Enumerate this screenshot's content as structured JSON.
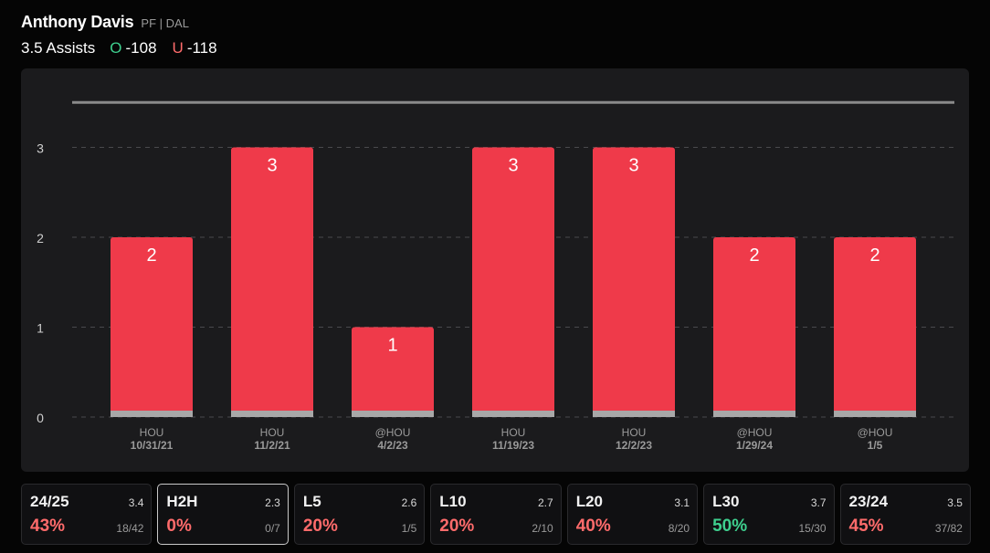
{
  "player": {
    "name": "Anthony Davis",
    "meta": "PF | DAL"
  },
  "line": {
    "label": "3.5 Assists",
    "over_letter": "O",
    "over_odds": "-108",
    "under_letter": "U",
    "under_odds": "-118"
  },
  "colors": {
    "bar": "#ef3a4a",
    "bar_base": "#a8a8a8",
    "over": "#3ecf8e",
    "under": "#ff6b6b",
    "line": "#8a8a8a"
  },
  "chart_data": {
    "type": "bar",
    "categories": [
      {
        "opponent": "HOU",
        "date": "10/31/21"
      },
      {
        "opponent": "HOU",
        "date": "11/2/21"
      },
      {
        "opponent": "@HOU",
        "date": "4/2/23"
      },
      {
        "opponent": "HOU",
        "date": "11/19/23"
      },
      {
        "opponent": "HOU",
        "date": "12/2/23"
      },
      {
        "opponent": "@HOU",
        "date": "1/29/24"
      },
      {
        "opponent": "@HOU",
        "date": "1/5"
      }
    ],
    "values": [
      2,
      3,
      1,
      3,
      3,
      2,
      2
    ],
    "yticks": [
      0,
      1,
      2,
      3
    ],
    "ylim": [
      0,
      3.5
    ],
    "threshold": 3.5,
    "title": "",
    "xlabel": "",
    "ylabel": ""
  },
  "stats": [
    {
      "label": "24/25",
      "avg": "3.4",
      "pct": "43%",
      "ratio": "18/42",
      "status": "under",
      "active": false
    },
    {
      "label": "H2H",
      "avg": "2.3",
      "pct": "0%",
      "ratio": "0/7",
      "status": "under",
      "active": true
    },
    {
      "label": "L5",
      "avg": "2.6",
      "pct": "20%",
      "ratio": "1/5",
      "status": "under",
      "active": false
    },
    {
      "label": "L10",
      "avg": "2.7",
      "pct": "20%",
      "ratio": "2/10",
      "status": "under",
      "active": false
    },
    {
      "label": "L20",
      "avg": "3.1",
      "pct": "40%",
      "ratio": "8/20",
      "status": "under",
      "active": false
    },
    {
      "label": "L30",
      "avg": "3.7",
      "pct": "50%",
      "ratio": "15/30",
      "status": "over",
      "active": false
    },
    {
      "label": "23/24",
      "avg": "3.5",
      "pct": "45%",
      "ratio": "37/82",
      "status": "under",
      "active": false
    }
  ]
}
